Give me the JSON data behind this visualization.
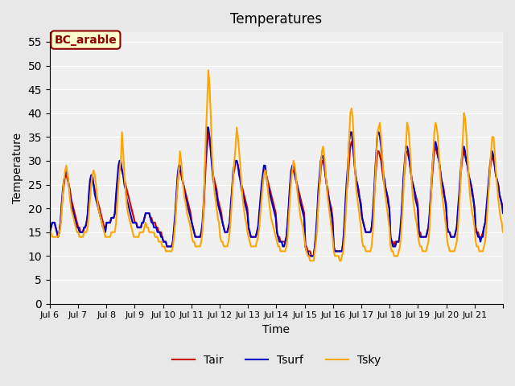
{
  "title": "Temperatures",
  "xlabel": "Time",
  "ylabel": "Temperature",
  "ylim": [
    0,
    57
  ],
  "yticks": [
    0,
    5,
    10,
    15,
    20,
    25,
    30,
    35,
    40,
    45,
    50,
    55
  ],
  "bg_color": "#e8e8e8",
  "plot_bg_color": "#f0f0f0",
  "annotation_text": "BC_arable",
  "annotation_bg": "#ffffcc",
  "annotation_border": "#8b0000",
  "annotation_text_color": "#8b0000",
  "line_colors": {
    "Tair": "#cc0000",
    "Tsurf": "#0000cc",
    "Tsky": "#ffa500"
  },
  "line_width": 1.5,
  "xtick_labels": [
    "Jul 6",
    "Jul 7",
    "Jul 8",
    "Jul 9",
    "Jul 10",
    "Jul 11",
    "Jul 12",
    "Jul 13",
    "Jul 14",
    "Jul 15",
    "Jul 16",
    "Jul 17",
    "Jul 18",
    "Jul 19",
    "Jul 20",
    "Jul 21",
    ""
  ],
  "n_days": 16,
  "points_per_day": 24,
  "Tair": [
    15,
    16,
    17,
    17,
    17,
    16,
    15,
    14,
    15,
    17,
    20,
    23,
    25,
    27,
    27,
    26,
    25,
    24,
    22,
    21,
    20,
    19,
    18,
    17,
    16,
    16,
    15,
    15,
    15,
    16,
    16,
    17,
    18,
    22,
    25,
    26,
    26,
    25,
    24,
    23,
    22,
    21,
    20,
    19,
    18,
    17,
    16,
    16,
    17,
    17,
    17,
    17,
    18,
    18,
    18,
    19,
    22,
    25,
    27,
    30,
    29,
    28,
    27,
    26,
    25,
    24,
    23,
    22,
    21,
    20,
    19,
    18,
    17,
    17,
    16,
    16,
    16,
    16,
    17,
    17,
    18,
    19,
    19,
    19,
    19,
    18,
    18,
    17,
    17,
    17,
    16,
    16,
    15,
    15,
    15,
    14,
    13,
    13,
    13,
    12,
    12,
    12,
    12,
    12,
    13,
    15,
    18,
    22,
    25,
    28,
    28,
    27,
    26,
    25,
    24,
    23,
    22,
    21,
    20,
    19,
    17,
    16,
    15,
    14,
    14,
    14,
    14,
    14,
    14,
    16,
    19,
    25,
    30,
    33,
    36,
    35,
    33,
    30,
    27,
    26,
    25,
    24,
    22,
    21,
    20,
    19,
    17,
    16,
    15,
    15,
    15,
    16,
    17,
    20,
    23,
    27,
    28,
    30,
    30,
    29,
    28,
    26,
    25,
    24,
    23,
    22,
    21,
    20,
    16,
    15,
    14,
    14,
    14,
    14,
    14,
    15,
    16,
    18,
    21,
    24,
    26,
    28,
    28,
    27,
    26,
    25,
    24,
    23,
    22,
    21,
    20,
    19,
    15,
    14,
    14,
    13,
    13,
    13,
    13,
    13,
    14,
    17,
    20,
    24,
    27,
    28,
    28,
    27,
    26,
    25,
    24,
    23,
    22,
    21,
    20,
    19,
    12,
    12,
    11,
    11,
    11,
    10,
    10,
    10,
    12,
    14,
    18,
    22,
    25,
    28,
    30,
    30,
    29,
    27,
    25,
    24,
    22,
    21,
    20,
    18,
    12,
    11,
    11,
    11,
    11,
    11,
    11,
    11,
    13,
    16,
    20,
    24,
    26,
    30,
    33,
    34,
    33,
    31,
    28,
    26,
    25,
    24,
    22,
    21,
    18,
    17,
    16,
    15,
    15,
    15,
    15,
    15,
    16,
    18,
    22,
    26,
    29,
    32,
    32,
    31,
    30,
    28,
    26,
    25,
    24,
    23,
    22,
    20,
    14,
    13,
    13,
    12,
    13,
    13,
    13,
    13,
    14,
    17,
    21,
    26,
    28,
    32,
    32,
    31,
    30,
    28,
    26,
    25,
    24,
    23,
    22,
    21,
    15,
    15,
    14,
    14,
    14,
    14,
    14,
    15,
    16,
    18,
    22,
    26,
    29,
    32,
    33,
    32,
    31,
    30,
    28,
    26,
    25,
    24,
    22,
    21,
    16,
    15,
    15,
    14,
    14,
    14,
    14,
    15,
    16,
    19,
    22,
    26,
    29,
    31,
    32,
    31,
    30,
    29,
    27,
    26,
    25,
    24,
    22,
    20,
    16,
    15,
    15,
    14,
    14,
    14,
    15,
    16,
    17,
    19,
    22,
    25,
    28,
    30,
    31,
    30,
    29,
    27,
    26,
    25,
    23,
    22,
    21,
    20
  ],
  "Tsurf": [
    15,
    16,
    17,
    17,
    17,
    16,
    15,
    14,
    15,
    17,
    21,
    24,
    26,
    27,
    28,
    27,
    25,
    23,
    21,
    20,
    19,
    18,
    17,
    16,
    16,
    15,
    15,
    15,
    15,
    16,
    16,
    17,
    19,
    23,
    26,
    27,
    27,
    25,
    23,
    22,
    21,
    20,
    19,
    18,
    17,
    16,
    16,
    15,
    17,
    17,
    17,
    17,
    18,
    18,
    18,
    19,
    23,
    26,
    29,
    30,
    30,
    28,
    27,
    25,
    24,
    22,
    21,
    20,
    19,
    18,
    17,
    17,
    17,
    17,
    16,
    16,
    16,
    16,
    17,
    17,
    18,
    19,
    19,
    19,
    19,
    18,
    17,
    17,
    16,
    16,
    16,
    15,
    15,
    15,
    14,
    14,
    13,
    13,
    13,
    12,
    12,
    12,
    12,
    12,
    13,
    16,
    19,
    23,
    27,
    29,
    29,
    28,
    26,
    25,
    23,
    22,
    21,
    20,
    19,
    18,
    17,
    16,
    15,
    14,
    14,
    14,
    14,
    14,
    15,
    17,
    21,
    27,
    33,
    37,
    37,
    35,
    32,
    29,
    26,
    25,
    24,
    23,
    21,
    20,
    19,
    18,
    17,
    16,
    15,
    15,
    15,
    16,
    17,
    21,
    24,
    28,
    29,
    30,
    30,
    29,
    27,
    26,
    24,
    23,
    22,
    21,
    20,
    19,
    16,
    15,
    14,
    14,
    14,
    14,
    14,
    15,
    16,
    19,
    22,
    25,
    27,
    29,
    29,
    27,
    25,
    24,
    23,
    22,
    21,
    20,
    19,
    18,
    15,
    14,
    13,
    13,
    13,
    12,
    12,
    13,
    14,
    17,
    21,
    25,
    28,
    29,
    29,
    28,
    26,
    25,
    23,
    22,
    21,
    20,
    19,
    18,
    12,
    11,
    11,
    10,
    10,
    10,
    10,
    10,
    12,
    15,
    19,
    24,
    27,
    30,
    31,
    31,
    29,
    27,
    25,
    23,
    22,
    20,
    19,
    17,
    12,
    11,
    11,
    11,
    11,
    11,
    11,
    11,
    13,
    17,
    22,
    26,
    29,
    34,
    36,
    36,
    34,
    31,
    28,
    26,
    25,
    23,
    22,
    20,
    18,
    17,
    16,
    15,
    15,
    15,
    15,
    15,
    16,
    19,
    23,
    28,
    32,
    36,
    36,
    35,
    33,
    30,
    27,
    26,
    24,
    23,
    21,
    20,
    14,
    13,
    12,
    12,
    12,
    13,
    13,
    13,
    15,
    18,
    22,
    27,
    30,
    33,
    33,
    32,
    30,
    28,
    26,
    25,
    24,
    22,
    21,
    20,
    15,
    14,
    14,
    14,
    14,
    14,
    14,
    15,
    16,
    19,
    23,
    27,
    31,
    33,
    34,
    33,
    31,
    30,
    28,
    26,
    25,
    23,
    22,
    20,
    16,
    15,
    15,
    14,
    14,
    14,
    14,
    15,
    16,
    20,
    23,
    27,
    30,
    32,
    33,
    32,
    30,
    29,
    27,
    26,
    25,
    23,
    22,
    20,
    15,
    15,
    14,
    14,
    13,
    14,
    14,
    16,
    17,
    20,
    23,
    26,
    29,
    31,
    32,
    31,
    29,
    27,
    26,
    25,
    23,
    22,
    21,
    19
  ],
  "Tsky": [
    15,
    15,
    14,
    14,
    14,
    14,
    14,
    14,
    15,
    16,
    19,
    23,
    26,
    28,
    29,
    27,
    25,
    22,
    20,
    19,
    18,
    17,
    16,
    15,
    15,
    14,
    14,
    14,
    14,
    15,
    15,
    15,
    16,
    19,
    22,
    25,
    27,
    28,
    27,
    25,
    22,
    20,
    19,
    18,
    17,
    16,
    15,
    14,
    14,
    14,
    14,
    14,
    15,
    15,
    15,
    15,
    17,
    21,
    25,
    28,
    30,
    36,
    32,
    27,
    24,
    21,
    19,
    18,
    17,
    16,
    15,
    14,
    14,
    14,
    14,
    14,
    15,
    15,
    15,
    15,
    16,
    17,
    16,
    16,
    15,
    15,
    15,
    15,
    15,
    14,
    14,
    14,
    13,
    13,
    13,
    12,
    12,
    12,
    11,
    11,
    11,
    11,
    11,
    11,
    12,
    14,
    17,
    21,
    25,
    28,
    32,
    30,
    27,
    24,
    22,
    21,
    19,
    18,
    17,
    16,
    14,
    13,
    13,
    12,
    12,
    12,
    12,
    12,
    13,
    15,
    20,
    28,
    36,
    42,
    49,
    46,
    40,
    32,
    27,
    24,
    22,
    20,
    18,
    17,
    14,
    13,
    13,
    12,
    12,
    12,
    12,
    13,
    15,
    18,
    22,
    27,
    30,
    33,
    37,
    35,
    32,
    29,
    25,
    22,
    20,
    18,
    17,
    15,
    14,
    13,
    12,
    12,
    12,
    12,
    12,
    13,
    14,
    16,
    19,
    22,
    25,
    27,
    28,
    27,
    25,
    22,
    20,
    18,
    17,
    16,
    15,
    14,
    13,
    12,
    12,
    11,
    11,
    11,
    11,
    11,
    12,
    14,
    18,
    22,
    26,
    28,
    30,
    29,
    27,
    24,
    22,
    20,
    18,
    17,
    16,
    14,
    12,
    11,
    10,
    10,
    9,
    9,
    9,
    9,
    11,
    13,
    16,
    21,
    25,
    29,
    32,
    33,
    31,
    28,
    25,
    22,
    20,
    18,
    16,
    14,
    11,
    10,
    10,
    10,
    10,
    9,
    9,
    10,
    11,
    14,
    18,
    23,
    28,
    35,
    40,
    41,
    39,
    34,
    28,
    24,
    22,
    20,
    18,
    16,
    13,
    12,
    12,
    11,
    11,
    11,
    11,
    11,
    12,
    15,
    20,
    26,
    31,
    36,
    37,
    38,
    35,
    31,
    27,
    24,
    22,
    20,
    18,
    16,
    12,
    11,
    11,
    10,
    10,
    10,
    10,
    11,
    12,
    15,
    19,
    24,
    29,
    33,
    38,
    37,
    34,
    30,
    25,
    22,
    20,
    18,
    17,
    15,
    13,
    12,
    12,
    11,
    11,
    11,
    11,
    12,
    13,
    16,
    21,
    27,
    31,
    36,
    38,
    37,
    35,
    31,
    27,
    24,
    22,
    20,
    18,
    16,
    13,
    12,
    11,
    11,
    11,
    11,
    11,
    12,
    13,
    16,
    20,
    25,
    30,
    34,
    40,
    39,
    36,
    31,
    27,
    23,
    21,
    19,
    18,
    16,
    13,
    12,
    12,
    11,
    11,
    11,
    11,
    12,
    13,
    16,
    20,
    24,
    28,
    32,
    35,
    35,
    32,
    28,
    25,
    22,
    20,
    18,
    17,
    15
  ]
}
